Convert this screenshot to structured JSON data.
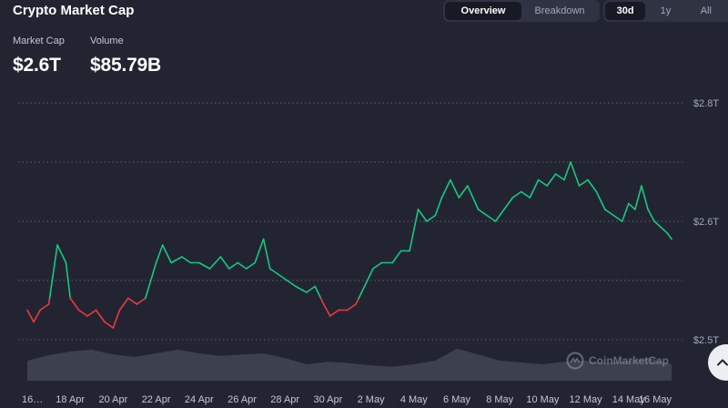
{
  "header": {
    "title": "Crypto Market Cap",
    "view_tabs": [
      {
        "label": "Overview",
        "active": true
      },
      {
        "label": "Breakdown",
        "active": false
      }
    ],
    "range_tabs": [
      {
        "label": "30d",
        "active": true
      },
      {
        "label": "1y",
        "active": false
      },
      {
        "label": "All",
        "active": false
      }
    ]
  },
  "stats": {
    "market_cap_label": "Market Cap",
    "market_cap_value": "$2.6T",
    "volume_label": "Volume",
    "volume_value": "$85.79B"
  },
  "watermark": {
    "text": "CoinMarketCap",
    "icon": "coinmarketcap-logo-icon"
  },
  "scroll_button": {
    "icon": "chevron-up-icon"
  },
  "colors": {
    "up": "#16c784",
    "down": "#ea3943",
    "background": "#222531",
    "volume": "#3d414f",
    "grid": "#5a5f70"
  },
  "chart_data": {
    "type": "line",
    "x_tick_labels": [
      "16…",
      "18 Apr",
      "20 Apr",
      "22 Apr",
      "24 Apr",
      "26 Apr",
      "28 Apr",
      "30 Apr",
      "2 May",
      "4 May",
      "6 May",
      "8 May",
      "10 May",
      "12 May",
      "14 May",
      "16 May"
    ],
    "y_tick_labels": [
      "$2.8T",
      "$2.6T",
      "$2.5T"
    ],
    "y_ticks": [
      2.8,
      2.6,
      2.5
    ],
    "ylim": [
      2.4,
      2.8
    ],
    "grid": true,
    "reference_value": 2.47,
    "x_range": [
      16,
      46
    ],
    "series": [
      {
        "x": [
          16,
          16.3,
          16.6,
          17,
          17.4,
          17.8,
          18,
          18.4,
          18.8,
          19.2,
          19.6,
          20,
          20.3,
          20.7,
          21.1,
          21.5,
          22,
          22.3,
          22.7,
          23.2,
          23.6,
          24,
          24.5,
          25,
          25.4,
          25.8,
          26.2,
          26.6,
          27,
          27.3,
          27.7,
          28.1,
          28.5,
          29,
          29.4,
          29.8,
          30.1,
          30.5,
          30.9,
          31.3,
          31.7,
          32.1,
          32.5,
          33,
          33.4,
          33.8,
          34.2,
          34.6,
          35,
          35.3,
          35.7,
          36.1,
          36.5,
          37,
          37.4,
          37.8,
          38.2,
          38.6,
          39,
          39.4,
          39.8,
          40.2,
          40.6,
          41,
          41.3,
          41.7,
          42.1,
          42.5,
          42.9,
          43.3,
          43.7,
          44,
          44.3,
          44.6,
          44.9,
          45.2,
          45.5,
          45.8,
          46
        ],
        "values": [
          2.45,
          2.43,
          2.45,
          2.46,
          2.56,
          2.53,
          2.47,
          2.45,
          2.44,
          2.45,
          2.43,
          2.42,
          2.45,
          2.47,
          2.46,
          2.47,
          2.53,
          2.56,
          2.53,
          2.54,
          2.53,
          2.53,
          2.52,
          2.54,
          2.52,
          2.53,
          2.52,
          2.53,
          2.57,
          2.52,
          2.51,
          2.5,
          2.49,
          2.48,
          2.49,
          2.46,
          2.44,
          2.45,
          2.45,
          2.46,
          2.49,
          2.52,
          2.53,
          2.53,
          2.55,
          2.55,
          2.62,
          2.6,
          2.61,
          2.64,
          2.67,
          2.64,
          2.66,
          2.62,
          2.61,
          2.6,
          2.62,
          2.64,
          2.65,
          2.64,
          2.67,
          2.66,
          2.68,
          2.67,
          2.7,
          2.66,
          2.67,
          2.65,
          2.62,
          2.61,
          2.6,
          2.63,
          2.62,
          2.66,
          2.62,
          2.6,
          2.59,
          2.58,
          2.57
        ]
      }
    ],
    "volume": {
      "x": [
        16,
        17,
        18,
        19,
        20,
        21,
        22,
        23,
        24,
        25,
        26,
        27,
        28,
        29,
        30,
        31,
        32,
        33,
        34,
        35,
        36,
        37,
        38,
        39,
        40,
        41,
        42,
        43,
        44,
        45,
        46
      ],
      "values": [
        0.55,
        0.7,
        0.8,
        0.85,
        0.72,
        0.65,
        0.75,
        0.85,
        0.75,
        0.68,
        0.72,
        0.75,
        0.62,
        0.45,
        0.52,
        0.48,
        0.42,
        0.38,
        0.45,
        0.55,
        0.88,
        0.72,
        0.55,
        0.5,
        0.45,
        0.52,
        0.55,
        0.48,
        0.55,
        0.62,
        0.45
      ]
    }
  }
}
